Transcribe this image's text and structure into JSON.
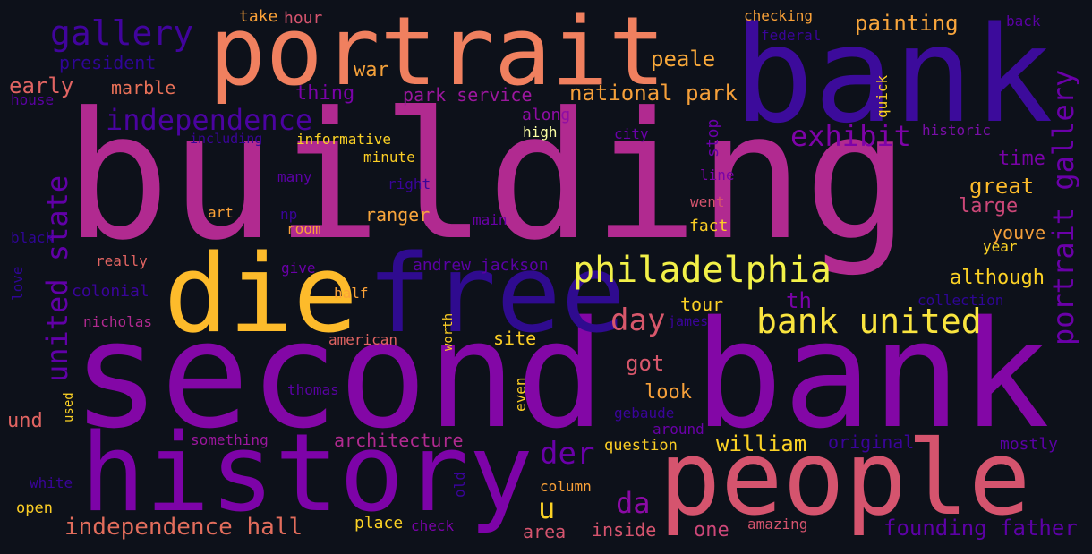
{
  "words": [
    {
      "text": "building",
      "color": "#b12a90"
    },
    {
      "text": "second bank",
      "color": "#8307a6"
    },
    {
      "text": "bank",
      "color": "#3c0b9b"
    },
    {
      "text": "portrait",
      "color": "#f0805f"
    },
    {
      "text": "history",
      "color": "#7d03a8"
    },
    {
      "text": "people",
      "color": "#d5546e"
    },
    {
      "text": "free",
      "color": "#2f0b8f"
    },
    {
      "text": "die",
      "color": "#fdbb2b"
    },
    {
      "text": "philadelphia",
      "color": "#f2f048"
    },
    {
      "text": "bank united",
      "color": "#f9e43f"
    },
    {
      "text": "united state",
      "color": "#6100a7"
    },
    {
      "text": "portrait gallery",
      "color": "#6a00a8"
    },
    {
      "text": "gallery",
      "color": "#41049d"
    },
    {
      "text": "independence",
      "color": "#4b03a1"
    },
    {
      "text": "exhibit",
      "color": "#7e03a8"
    },
    {
      "text": "national park",
      "color": "#f6a03a"
    },
    {
      "text": "independence hall",
      "color": "#e26d5c"
    },
    {
      "text": "founding father",
      "color": "#5d01a6"
    },
    {
      "text": "day",
      "color": "#d8576b"
    },
    {
      "text": "der",
      "color": "#6a00a8"
    },
    {
      "text": "da",
      "color": "#8b0aa5"
    },
    {
      "text": "u",
      "color": "#fcd225"
    },
    {
      "text": "painting",
      "color": "#f8a53c"
    },
    {
      "text": "peale",
      "color": "#f9a93a"
    },
    {
      "text": "park service",
      "color": "#9c179e"
    },
    {
      "text": "president",
      "color": "#2f0596"
    },
    {
      "text": "early",
      "color": "#e16462"
    },
    {
      "text": "marble",
      "color": "#e97158"
    },
    {
      "text": "war",
      "color": "#f5a13a"
    },
    {
      "text": "thing",
      "color": "#7a02a8"
    },
    {
      "text": "take",
      "color": "#fba238"
    },
    {
      "text": "hour",
      "color": "#d5546e"
    },
    {
      "text": "checking",
      "color": "#fba238"
    },
    {
      "text": "federal",
      "color": "#3a049a"
    },
    {
      "text": "back",
      "color": "#5b01a5"
    },
    {
      "text": "house",
      "color": "#5b01a5"
    },
    {
      "text": "including",
      "color": "#3a049a"
    },
    {
      "text": "informative",
      "color": "#fcd225"
    },
    {
      "text": "minute",
      "color": "#fcce25"
    },
    {
      "text": "high",
      "color": "#fcffa4"
    },
    {
      "text": "city",
      "color": "#6a00a8"
    },
    {
      "text": "historic",
      "color": "#7a0ea8"
    },
    {
      "text": "along",
      "color": "#8f0da4"
    },
    {
      "text": "quick",
      "color": "#fcce25"
    },
    {
      "text": "stop",
      "color": "#6a00a8"
    },
    {
      "text": "time",
      "color": "#7a02a8"
    },
    {
      "text": "great",
      "color": "#fdbb2b"
    },
    {
      "text": "large",
      "color": "#cc4778"
    },
    {
      "text": "youve",
      "color": "#f6a03a"
    },
    {
      "text": "year",
      "color": "#fcd225"
    },
    {
      "text": "although",
      "color": "#fcd225"
    },
    {
      "text": "line",
      "color": "#7a02a8"
    },
    {
      "text": "went",
      "color": "#d5546e"
    },
    {
      "text": "fact",
      "color": "#fcce25"
    },
    {
      "text": "many",
      "color": "#5b01a5"
    },
    {
      "text": "right",
      "color": "#3a049a"
    },
    {
      "text": "art",
      "color": "#fba238"
    },
    {
      "text": "np",
      "color": "#3a049a"
    },
    {
      "text": "ranger",
      "color": "#f8a53c"
    },
    {
      "text": "main",
      "color": "#6a00a8"
    },
    {
      "text": "room",
      "color": "#fba238"
    },
    {
      "text": "black",
      "color": "#2f0596"
    },
    {
      "text": "really",
      "color": "#e16462"
    },
    {
      "text": "give",
      "color": "#6a00a8"
    },
    {
      "text": "andrew jackson",
      "color": "#5b01a5"
    },
    {
      "text": "love",
      "color": "#2f0596"
    },
    {
      "text": "colonial",
      "color": "#3a049a"
    },
    {
      "text": "half",
      "color": "#fba238"
    },
    {
      "text": "tour",
      "color": "#fcd225"
    },
    {
      "text": "th",
      "color": "#7a02a8"
    },
    {
      "text": "collection",
      "color": "#2f0596"
    },
    {
      "text": "nicholas",
      "color": "#b12a90"
    },
    {
      "text": "james",
      "color": "#3a049a"
    },
    {
      "text": "american",
      "color": "#e16462"
    },
    {
      "text": "worth",
      "color": "#fcce25"
    },
    {
      "text": "site",
      "color": "#fcce25"
    },
    {
      "text": "got",
      "color": "#d8576b"
    },
    {
      "text": "thomas",
      "color": "#5b01a5"
    },
    {
      "text": "look",
      "color": "#f6a03a"
    },
    {
      "text": "und",
      "color": "#e16462"
    },
    {
      "text": "used",
      "color": "#fcd225"
    },
    {
      "text": "even",
      "color": "#fcce25"
    },
    {
      "text": "gebaude",
      "color": "#3a049a"
    },
    {
      "text": "around",
      "color": "#6a00a8"
    },
    {
      "text": "something",
      "color": "#9c179e"
    },
    {
      "text": "architecture",
      "color": "#b12a90"
    },
    {
      "text": "william",
      "color": "#fcd225"
    },
    {
      "text": "question",
      "color": "#fcce25"
    },
    {
      "text": "original",
      "color": "#3a049a"
    },
    {
      "text": "mostly",
      "color": "#5b01a5"
    },
    {
      "text": "white",
      "color": "#3a049a"
    },
    {
      "text": "old",
      "color": "#3a049a"
    },
    {
      "text": "column",
      "color": "#fba238"
    },
    {
      "text": "open",
      "color": "#fcce25"
    },
    {
      "text": "place",
      "color": "#fcd225"
    },
    {
      "text": "check",
      "color": "#7a02a8"
    },
    {
      "text": "area",
      "color": "#d5546e"
    },
    {
      "text": "inside",
      "color": "#d5546e"
    },
    {
      "text": "one",
      "color": "#cc4778"
    },
    {
      "text": "amazing",
      "color": "#d5546e"
    }
  ]
}
